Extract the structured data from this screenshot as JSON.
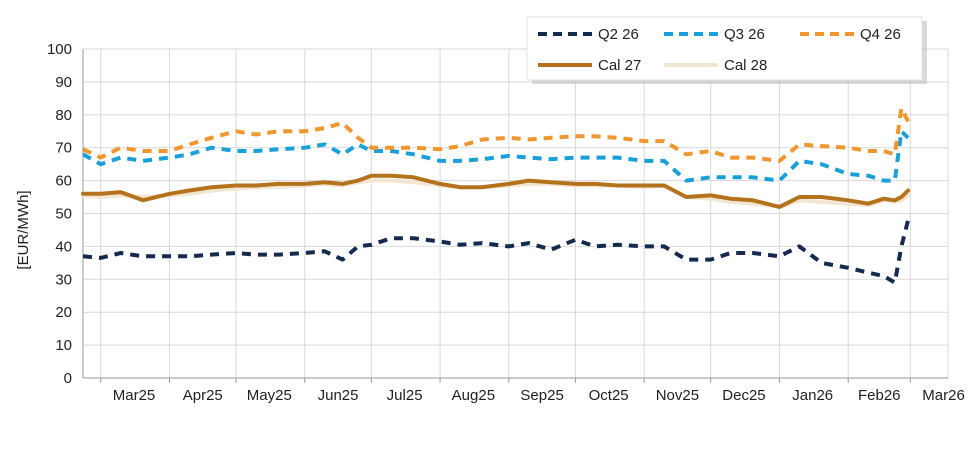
{
  "chart_data": {
    "type": "line",
    "ylabel": "[EUR/MWh]",
    "ylim": [
      0,
      100
    ],
    "yticks": [
      0,
      10,
      20,
      30,
      40,
      50,
      60,
      70,
      80,
      90,
      100
    ],
    "xlim": [
      "2025-02-21",
      "2026-03-18"
    ],
    "xtick_labels": [
      "Mar25",
      "Apr25",
      "May25",
      "Jun25",
      "Jul25",
      "Aug25",
      "Sep25",
      "Oct25",
      "Nov25",
      "Dec25",
      "Jan26",
      "Feb26",
      "Mar26"
    ],
    "xtick_dates": [
      "2025-03-01",
      "2025-04-01",
      "2025-05-01",
      "2025-06-01",
      "2025-07-01",
      "2025-08-01",
      "2025-09-01",
      "2025-10-01",
      "2025-11-01",
      "2025-12-01",
      "2026-01-01",
      "2026-02-01",
      "2026-03-01"
    ],
    "grid": true,
    "legend": "top-right",
    "series": [
      {
        "name": "Q2 26",
        "color": "#142a4e",
        "style": "dashed",
        "x": [
          "2025-02-21",
          "2025-03-01",
          "2025-03-10",
          "2025-03-20",
          "2025-04-01",
          "2025-04-10",
          "2025-04-20",
          "2025-05-01",
          "2025-05-10",
          "2025-05-20",
          "2025-06-01",
          "2025-06-10",
          "2025-06-18",
          "2025-06-25",
          "2025-07-01",
          "2025-07-10",
          "2025-07-20",
          "2025-08-01",
          "2025-08-10",
          "2025-08-20",
          "2025-09-01",
          "2025-09-10",
          "2025-09-20",
          "2025-10-01",
          "2025-10-10",
          "2025-10-20",
          "2025-11-01",
          "2025-11-10",
          "2025-11-20",
          "2025-12-01",
          "2025-12-10",
          "2025-12-20",
          "2026-01-01",
          "2026-01-10",
          "2026-01-20",
          "2026-02-01",
          "2026-02-10",
          "2026-02-17",
          "2026-02-22",
          "2026-02-25",
          "2026-02-28"
        ],
        "y": [
          37,
          36.5,
          38,
          37,
          37,
          37,
          37.5,
          38,
          37.5,
          37.5,
          38,
          38.5,
          36,
          40,
          40.5,
          42.5,
          42.5,
          41.5,
          40.5,
          41,
          40,
          41,
          39,
          42,
          40,
          40.5,
          40,
          40,
          36,
          36,
          38,
          38,
          37,
          40,
          35,
          33.5,
          32,
          31,
          29,
          40,
          48
        ]
      },
      {
        "name": "Q3 26",
        "color": "#1aa0d8",
        "style": "dashed",
        "x": [
          "2025-02-21",
          "2025-03-01",
          "2025-03-10",
          "2025-03-20",
          "2025-04-01",
          "2025-04-10",
          "2025-04-20",
          "2025-05-01",
          "2025-05-10",
          "2025-05-20",
          "2025-06-01",
          "2025-06-10",
          "2025-06-18",
          "2025-06-25",
          "2025-07-01",
          "2025-07-10",
          "2025-07-20",
          "2025-08-01",
          "2025-08-10",
          "2025-08-20",
          "2025-09-01",
          "2025-09-10",
          "2025-09-20",
          "2025-10-01",
          "2025-10-10",
          "2025-10-20",
          "2025-11-01",
          "2025-11-10",
          "2025-11-20",
          "2025-12-01",
          "2025-12-10",
          "2025-12-20",
          "2026-01-01",
          "2026-01-10",
          "2026-01-20",
          "2026-02-01",
          "2026-02-10",
          "2026-02-17",
          "2026-02-22",
          "2026-02-25",
          "2026-02-28"
        ],
        "y": [
          68,
          65,
          67,
          66,
          67,
          68,
          70,
          69,
          69,
          69.5,
          70,
          71,
          68,
          71,
          69,
          69,
          68,
          66,
          66,
          66.5,
          67.5,
          67,
          66.5,
          67,
          67,
          67,
          66,
          66,
          60,
          61,
          61,
          61,
          60,
          66,
          65,
          62,
          61.5,
          60,
          60,
          75,
          73
        ]
      },
      {
        "name": "Q4 26",
        "color": "#f0962e",
        "style": "dashed",
        "x": [
          "2025-02-21",
          "2025-03-01",
          "2025-03-10",
          "2025-03-20",
          "2025-04-01",
          "2025-04-10",
          "2025-04-20",
          "2025-05-01",
          "2025-05-10",
          "2025-05-20",
          "2025-06-01",
          "2025-06-10",
          "2025-06-18",
          "2025-06-25",
          "2025-07-01",
          "2025-07-10",
          "2025-07-20",
          "2025-08-01",
          "2025-08-10",
          "2025-08-20",
          "2025-09-01",
          "2025-09-10",
          "2025-09-20",
          "2025-10-01",
          "2025-10-10",
          "2025-10-20",
          "2025-11-01",
          "2025-11-10",
          "2025-11-20",
          "2025-12-01",
          "2025-12-10",
          "2025-12-20",
          "2026-01-01",
          "2026-01-10",
          "2026-01-20",
          "2026-02-01",
          "2026-02-10",
          "2026-02-17",
          "2026-02-22",
          "2026-02-25",
          "2026-02-28"
        ],
        "y": [
          69.5,
          67,
          70,
          69,
          69,
          71,
          73,
          75,
          74,
          75,
          75,
          76,
          77.5,
          73,
          70,
          70,
          70,
          69.5,
          70.5,
          72.5,
          73,
          72.5,
          73,
          73.5,
          73.5,
          73,
          72,
          72,
          68,
          69,
          67,
          67,
          66,
          71,
          70.5,
          70,
          69,
          69,
          68,
          82,
          78
        ]
      },
      {
        "name": "Cal 27",
        "color": "#b5721c",
        "style": "solid",
        "x": [
          "2025-02-21",
          "2025-03-01",
          "2025-03-10",
          "2025-03-20",
          "2025-04-01",
          "2025-04-10",
          "2025-04-20",
          "2025-05-01",
          "2025-05-10",
          "2025-05-20",
          "2025-06-01",
          "2025-06-10",
          "2025-06-18",
          "2025-06-25",
          "2025-07-01",
          "2025-07-10",
          "2025-07-20",
          "2025-08-01",
          "2025-08-10",
          "2025-08-20",
          "2025-09-01",
          "2025-09-10",
          "2025-09-20",
          "2025-10-01",
          "2025-10-10",
          "2025-10-20",
          "2025-11-01",
          "2025-11-10",
          "2025-11-20",
          "2025-12-01",
          "2025-12-10",
          "2025-12-20",
          "2026-01-01",
          "2026-01-10",
          "2026-01-20",
          "2026-02-01",
          "2026-02-10",
          "2026-02-17",
          "2026-02-22",
          "2026-02-25",
          "2026-02-28"
        ],
        "y": [
          56,
          56,
          56.5,
          54,
          56,
          57,
          58,
          58.5,
          58.5,
          59,
          59,
          59.5,
          59,
          60,
          61.5,
          61.5,
          61,
          59,
          58,
          58,
          59,
          60,
          59.5,
          59,
          59,
          58.5,
          58.5,
          58.5,
          55,
          55.5,
          54.5,
          54,
          52,
          55,
          55,
          54,
          53,
          54.5,
          54,
          55,
          57
        ]
      },
      {
        "name": "Cal 28",
        "color": "#f2e6d2",
        "style": "solid",
        "x": [
          "2025-02-21",
          "2025-03-01",
          "2025-03-10",
          "2025-03-20",
          "2025-04-01",
          "2025-04-10",
          "2025-04-20",
          "2025-05-01",
          "2025-05-10",
          "2025-05-20",
          "2025-06-01",
          "2025-06-10",
          "2025-06-18",
          "2025-06-25",
          "2025-07-01",
          "2025-07-10",
          "2025-07-20",
          "2025-08-01",
          "2025-08-10",
          "2025-08-20",
          "2025-09-01",
          "2025-09-10",
          "2025-09-20",
          "2025-10-01",
          "2025-10-10",
          "2025-10-20",
          "2025-11-01",
          "2025-11-10",
          "2025-11-20",
          "2025-12-01",
          "2025-12-10",
          "2025-12-20",
          "2026-01-01",
          "2026-01-10",
          "2026-01-20",
          "2026-02-01",
          "2026-02-10",
          "2026-02-17",
          "2026-02-22",
          "2026-02-25",
          "2026-02-28"
        ],
        "y": [
          55.5,
          55,
          55.5,
          55,
          55.5,
          56,
          57,
          57.5,
          58,
          58,
          58.5,
          59,
          58.5,
          59.5,
          60,
          60,
          59.5,
          58.5,
          58,
          58,
          58.5,
          59,
          59,
          58.5,
          58.5,
          58.5,
          58,
          58.5,
          55,
          54.5,
          53.5,
          53,
          52,
          54,
          53.5,
          53,
          52.5,
          54,
          53.5,
          54,
          55.5
        ]
      }
    ]
  }
}
